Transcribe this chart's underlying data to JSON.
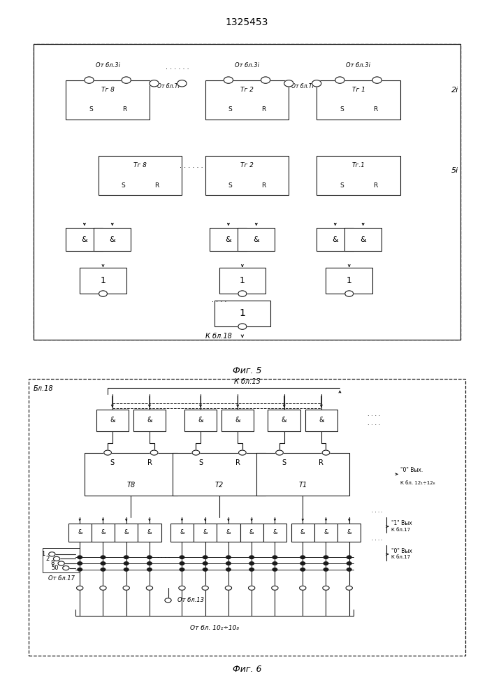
{
  "title": "1325453",
  "bg": "#ffffff",
  "lc": "#1a1a1a",
  "fig5_caption": "Фиг. 5",
  "fig6_caption": "Фиг. 6",
  "fig5": {
    "label_2i": "2i",
    "label_5i": "5i",
    "label_k_bl18": "К бл.18",
    "label_ot_bl3i": "От бл.3i",
    "label_ot_bl_ti": "От бл.Ti",
    "col1_sr1": "Тг 8",
    "col2_sr1": "Тг 2",
    "col3_sr1": "Тг 1",
    "col1_sr2": "Тг 8",
    "col2_sr2": "Тг 2",
    "col3_sr2": "Тг.1"
  },
  "fig6": {
    "label_bl18": "Бл.18",
    "label_k_bl13": "К бл.13",
    "label_ot_bl17": "От бл.17",
    "label_ot_bl13": "От бл.13",
    "label_ot_bl10": "От бл. 10₁÷10₈",
    "label_0_bl12_a": "\"0\" Вых.",
    "label_0_bl12_b": "К бл. 12₁÷12₈",
    "label_1_bl17_a": "\"1\" Вых",
    "label_1_bl17_b": "К бл.17",
    "label_0_bl17_a": "\"0\" Вых",
    "label_0_bl17_b": "К бл.17",
    "sr_T8": "Т8",
    "sr_T2": "Т2",
    "sr_T1": "Т1",
    "left_nums": [
      "1",
      "2",
      "8",
      "50"
    ]
  }
}
